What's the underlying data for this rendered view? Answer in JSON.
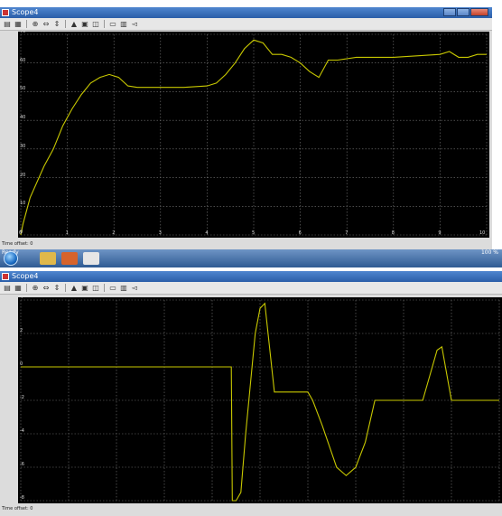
{
  "window_top": {
    "title": "Scope4",
    "status_text": "Time offset:  0",
    "plot": {
      "x_ticks": [
        "0",
        "1",
        "2",
        "3",
        "4",
        "5",
        "6",
        "7",
        "8",
        "9",
        "10"
      ],
      "y_ticks": [
        "0",
        "10",
        "20",
        "30",
        "40",
        "50",
        "60",
        "70"
      ],
      "line_color": "#c8c800"
    }
  },
  "window_bottom": {
    "title": "Scope4",
    "status_text": "Time offset:  0",
    "plot": {
      "y_ticks": [
        "4",
        "2",
        "0",
        "-2",
        "-4",
        "-6",
        "-8"
      ],
      "line_color": "#c8c800"
    }
  },
  "taskbar": {
    "ready_text": "Ready",
    "zoom_text": "100 %"
  },
  "chart_data": [
    {
      "type": "line",
      "xlim": [
        0,
        10
      ],
      "ylim": [
        0,
        70
      ],
      "grid": true,
      "x": [
        0,
        0.05,
        0.2,
        0.5,
        0.7,
        0.9,
        1.1,
        1.3,
        1.5,
        1.7,
        1.9,
        2.1,
        2.3,
        2.5,
        3.0,
        3.5,
        4.0,
        4.2,
        4.4,
        4.6,
        4.8,
        5.0,
        5.2,
        5.4,
        5.6,
        5.8,
        6.0,
        6.2,
        6.4,
        6.6,
        6.8,
        7.0,
        7.2,
        7.5,
        8.0,
        8.5,
        9.0,
        9.2,
        9.4,
        9.6,
        9.8,
        10.0
      ],
      "y": [
        0,
        4,
        13,
        24,
        30,
        38,
        44,
        49,
        53,
        55,
        56,
        55,
        52,
        51.5,
        51.5,
        51.5,
        52,
        53,
        56,
        60,
        65,
        68,
        67,
        63,
        63,
        62,
        60,
        57,
        55,
        61,
        61,
        61.5,
        62,
        62,
        62,
        62.5,
        63,
        64,
        62,
        62,
        63,
        63
      ],
      "line_color": "#c8c800"
    },
    {
      "type": "line",
      "xlim": [
        0,
        10
      ],
      "ylim": [
        -8,
        4
      ],
      "grid": true,
      "x": [
        0,
        4.4,
        4.42,
        4.5,
        4.6,
        4.7,
        4.9,
        5.0,
        5.1,
        5.3,
        5.5,
        5.7,
        6.0,
        6.1,
        6.3,
        6.6,
        6.8,
        7.0,
        7.2,
        7.4,
        7.5,
        7.7,
        8.0,
        8.4,
        8.5,
        8.7,
        8.8,
        9.0,
        9.2,
        9.5,
        9.8,
        10.0
      ],
      "y": [
        0,
        0,
        -8,
        -8,
        -7.5,
        -4,
        2,
        3.5,
        3.8,
        -1.5,
        -1.5,
        -1.5,
        -1.5,
        -2,
        -3.5,
        -6,
        -6.5,
        -6,
        -4.5,
        -2,
        -2,
        -2,
        -2,
        -2,
        -1,
        1,
        1.2,
        -2,
        -2,
        -2,
        -2,
        -2
      ],
      "line_color": "#c8c800"
    }
  ]
}
